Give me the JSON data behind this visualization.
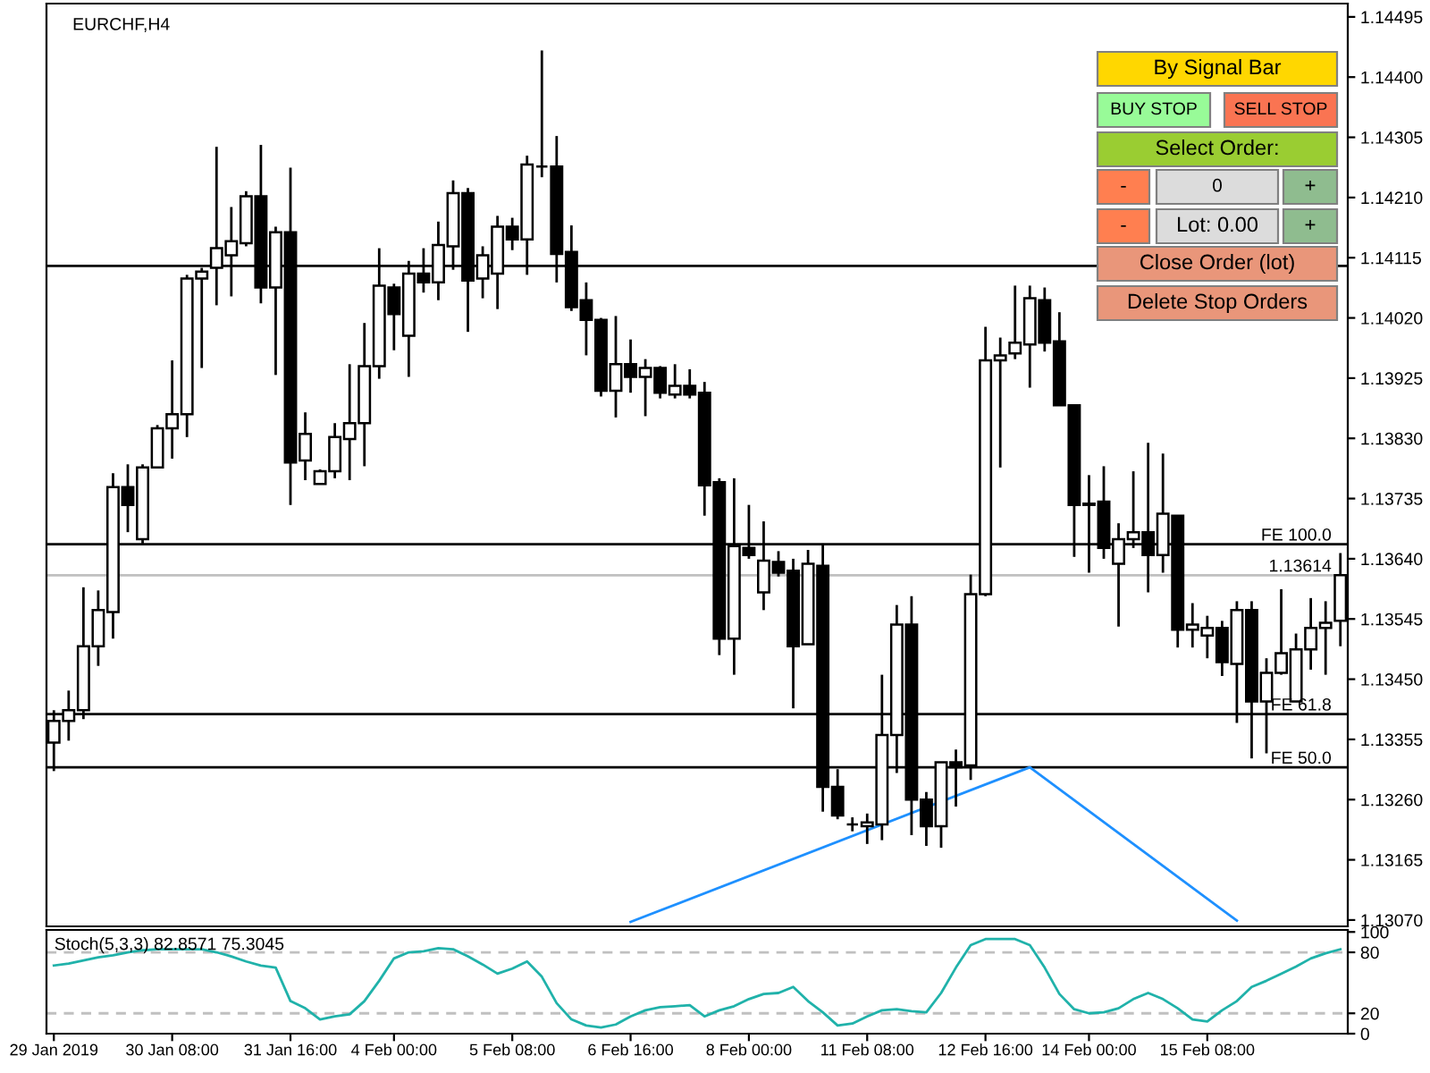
{
  "chart_data": [
    {
      "type": "candlestick",
      "title": "EURCHF,H4",
      "categories": [
        null,
        null,
        null,
        null,
        null,
        null,
        null,
        null,
        null,
        null,
        null,
        null,
        null,
        null,
        null,
        null,
        null,
        null,
        null,
        null,
        null,
        null,
        null,
        null,
        null,
        null,
        null,
        null,
        null,
        null,
        null,
        null,
        null,
        null,
        null,
        null,
        null,
        null,
        null,
        null,
        null,
        null,
        null,
        null,
        null,
        null,
        null,
        null,
        null,
        null,
        null,
        null,
        null,
        null,
        null,
        null,
        null,
        null,
        null,
        null,
        null,
        null,
        null,
        null,
        null,
        null,
        null,
        null,
        null,
        null,
        null,
        null,
        null,
        null,
        null,
        null,
        null,
        null,
        null,
        null,
        null,
        null,
        null,
        null,
        null,
        null,
        null,
        null
      ],
      "ohlc": [
        [
          1.1335,
          1.13401,
          1.13305,
          1.13384
        ],
        [
          1.13384,
          1.13432,
          1.13353,
          1.13401
        ],
        [
          1.13401,
          1.13595,
          1.13387,
          1.13502
        ],
        [
          1.13502,
          1.1359,
          1.13471,
          1.13559
        ],
        [
          1.13556,
          1.13775,
          1.13514,
          1.13753
        ],
        [
          1.13753,
          1.13789,
          1.13682,
          1.13725
        ],
        [
          1.13671,
          1.13789,
          1.13663,
          1.13784
        ],
        [
          1.13784,
          1.13851,
          1.13784,
          1.13846
        ],
        [
          1.13846,
          1.13953,
          1.13798,
          1.13868
        ],
        [
          1.13868,
          1.14088,
          1.13832,
          1.14082
        ],
        [
          1.14082,
          1.14099,
          1.13941,
          1.14093
        ],
        [
          1.14099,
          1.1429,
          1.1404,
          1.1413
        ],
        [
          1.14119,
          1.14195,
          1.14054,
          1.14141
        ],
        [
          1.14138,
          1.1422,
          1.14133,
          1.14212
        ],
        [
          1.14212,
          1.14293,
          1.14043,
          1.14068
        ],
        [
          1.14068,
          1.14164,
          1.1393,
          1.14155
        ],
        [
          1.14155,
          1.14257,
          1.13725,
          1.13792
        ],
        [
          1.13795,
          1.13871,
          1.13764,
          1.13837
        ],
        [
          1.13758,
          1.13781,
          1.13758,
          1.13778
        ],
        [
          1.13778,
          1.13854,
          1.13767,
          1.13832
        ],
        [
          1.13829,
          1.13947,
          1.13764,
          1.13854
        ],
        [
          1.13854,
          1.14012,
          1.13786,
          1.13944
        ],
        [
          1.13944,
          1.1413,
          1.13924,
          1.14071
        ],
        [
          1.14068,
          1.14074,
          1.13969,
          1.14026
        ],
        [
          1.13992,
          1.1411,
          1.13927,
          1.1409
        ],
        [
          1.1409,
          1.1413,
          1.1406,
          1.14076
        ],
        [
          1.14076,
          1.14172,
          1.14048,
          1.14135
        ],
        [
          1.14133,
          1.14237,
          1.14096,
          1.14217
        ],
        [
          1.14217,
          1.14225,
          1.13998,
          1.14079
        ],
        [
          1.14082,
          1.14133,
          1.14051,
          1.14119
        ],
        [
          1.1409,
          1.14181,
          1.14034,
          1.14164
        ],
        [
          1.14164,
          1.14178,
          1.14127,
          1.14144
        ],
        [
          1.14144,
          1.14276,
          1.14088,
          1.14262
        ],
        [
          1.14259,
          1.14442,
          1.14242,
          1.14259
        ],
        [
          1.14259,
          1.14307,
          1.14076,
          1.14121
        ],
        [
          1.14124,
          1.14166,
          1.14031,
          1.14037
        ],
        [
          1.14048,
          1.14076,
          1.13961,
          1.14017
        ],
        [
          1.14017,
          1.1402,
          1.13896,
          1.13905
        ],
        [
          1.13905,
          1.14023,
          1.13863,
          1.13947
        ],
        [
          1.13947,
          1.13986,
          1.13902,
          1.13927
        ],
        [
          1.13927,
          1.13955,
          1.13865,
          1.13941
        ],
        [
          1.13941,
          1.13944,
          1.13893,
          1.13902
        ],
        [
          1.13899,
          1.13947,
          1.13893,
          1.13913
        ],
        [
          1.13913,
          1.13939,
          1.13893,
          1.13899
        ],
        [
          1.13902,
          1.13919,
          1.13708,
          1.13756
        ],
        [
          1.13761,
          1.13767,
          1.13488,
          1.13514
        ],
        [
          1.13514,
          1.13767,
          1.13457,
          1.1366
        ],
        [
          1.13657,
          1.13725,
          1.1364,
          1.13646
        ],
        [
          1.13587,
          1.13699,
          1.13559,
          1.13637
        ],
        [
          1.13635,
          1.13652,
          1.13612,
          1.13618
        ],
        [
          1.13621,
          1.1364,
          1.13404,
          1.13502
        ],
        [
          1.13505,
          1.13654,
          1.13505,
          1.13632
        ],
        [
          1.13629,
          1.13663,
          1.13241,
          1.1328
        ],
        [
          1.1328,
          1.13308,
          1.13229,
          1.13235
        ],
        [
          1.13221,
          1.13232,
          1.1321,
          1.13221
        ],
        [
          1.13218,
          1.13238,
          1.1319,
          1.13224
        ],
        [
          1.13221,
          1.13457,
          1.13196,
          1.13362
        ],
        [
          1.13362,
          1.13567,
          1.13302,
          1.13536
        ],
        [
          1.13536,
          1.13581,
          1.13204,
          1.1326
        ],
        [
          1.1326,
          1.13272,
          1.13187,
          1.13218
        ],
        [
          1.13218,
          1.13319,
          1.13184,
          1.13319
        ],
        [
          1.13319,
          1.13339,
          1.13249,
          1.13311
        ],
        [
          1.13314,
          1.13615,
          1.13291,
          1.13584
        ],
        [
          1.13584,
          1.14006,
          1.13581,
          1.13953
        ],
        [
          1.13953,
          1.13989,
          1.13784,
          1.13961
        ],
        [
          1.13964,
          1.14071,
          1.13955,
          1.13981
        ],
        [
          1.13978,
          1.14071,
          1.1391,
          1.14051
        ],
        [
          1.14048,
          1.14068,
          1.13967,
          1.13981
        ],
        [
          1.13983,
          1.14029,
          1.13882,
          1.13882
        ],
        [
          1.13882,
          1.13882,
          1.13643,
          1.13725
        ],
        [
          1.13727,
          1.13772,
          1.13618,
          1.13725
        ],
        [
          1.1373,
          1.13786,
          1.1364,
          1.13657
        ],
        [
          1.13632,
          1.13696,
          1.13533,
          1.13671
        ],
        [
          1.13671,
          1.13778,
          1.13657,
          1.13682
        ],
        [
          1.13682,
          1.13823,
          1.13587,
          1.13646
        ],
        [
          1.13646,
          1.13806,
          1.13618,
          1.13711
        ],
        [
          1.13708,
          1.13708,
          1.135,
          1.13528
        ],
        [
          1.13528,
          1.1357,
          1.135,
          1.13536
        ],
        [
          1.13519,
          1.1355,
          1.13483,
          1.13531
        ],
        [
          1.13531,
          1.13542,
          1.13455,
          1.13477
        ],
        [
          1.13474,
          1.13573,
          1.13381,
          1.13559
        ],
        [
          1.13559,
          1.13573,
          1.13325,
          1.13415
        ],
        [
          1.13415,
          1.13483,
          1.13333,
          1.1346
        ],
        [
          1.1346,
          1.13592,
          1.13457,
          1.13491
        ],
        [
          1.13415,
          1.13522,
          1.13415,
          1.13497
        ],
        [
          1.13497,
          1.13578,
          1.13465,
          1.13531
        ],
        [
          1.13531,
          1.13573,
          1.13457,
          1.13539
        ],
        [
          1.13542,
          1.13649,
          1.13502,
          1.13614
        ]
      ],
      "series": [
        {
          "type": "line",
          "color": "#1e90ff",
          "values": [
            null,
            null,
            null,
            null,
            null,
            null,
            null,
            null,
            null,
            null,
            null,
            null,
            null,
            null,
            null,
            null,
            null,
            null,
            null,
            null,
            null,
            null,
            null,
            null,
            null,
            null,
            null,
            null,
            null,
            null,
            null,
            null,
            null,
            null,
            null,
            null,
            null,
            null,
            null,
            1.13067,
            null,
            null,
            null,
            null,
            null,
            null,
            null,
            null,
            null,
            null,
            null,
            null,
            null,
            null,
            null,
            null,
            null,
            null,
            null,
            null,
            null,
            null,
            null,
            null,
            null,
            null,
            1.13311,
            null,
            null,
            null,
            null,
            null,
            null,
            null,
            null,
            null,
            null,
            null,
            null,
            null,
            1.13069,
            null,
            null,
            null,
            null,
            null,
            null,
            null
          ]
        }
      ],
      "ylim": [
        1.1306,
        1.14516
      ],
      "yticks": [
        1.14495,
        {
          "value": 1.144,
          "label": "1.14400"
        },
        1.14305,
        {
          "value": 1.1421,
          "label": "1.14210"
        },
        1.14115,
        {
          "value": 1.1402,
          "label": "1.14020"
        },
        1.13925,
        {
          "value": 1.1383,
          "label": "1.13830"
        },
        1.13735,
        {
          "value": 1.1364,
          "label": "1.13640"
        },
        1.13545,
        {
          "value": 1.1345,
          "label": "1.13450"
        },
        1.13355,
        {
          "value": 1.1326,
          "label": "1.13260"
        },
        1.13165,
        {
          "value": 1.1307,
          "label": "1.13070"
        }
      ],
      "tick_labels": "y",
      "ref_lines": [
        {
          "axis": "y",
          "value": 1.14102,
          "color": "#000000"
        },
        {
          "axis": "y",
          "value": 1.13663,
          "label": "FE 100.0",
          "color": "#000000"
        },
        {
          "axis": "y",
          "value": 1.13614,
          "label": "1.13614",
          "color": "#c0c0c0"
        },
        {
          "axis": "y",
          "value": 1.13395,
          "label": "FE 61.8",
          "color": "#000000"
        },
        {
          "axis": "y",
          "value": 1.13311,
          "label": "FE 50.0",
          "color": "#000000"
        }
      ],
      "annotations": [
        "By Signal Bar",
        "BUY STOP",
        "SELL STOP",
        "Select Order:",
        "-",
        "0",
        "+",
        "-",
        "Lot: 0.00",
        "+",
        "Close Order (lot)",
        "Delete Stop Orders"
      ]
    },
    {
      "type": "line",
      "title": "Stoch(5,3,3) 82.8571 75.3045",
      "categories": [
        "29 Jan 2019",
        null,
        null,
        null,
        null,
        null,
        null,
        null,
        "30 Jan 08:00",
        null,
        null,
        null,
        null,
        null,
        null,
        null,
        "31 Jan 16:00",
        null,
        null,
        null,
        null,
        null,
        null,
        "4 Feb 00:00",
        null,
        null,
        null,
        null,
        null,
        null,
        null,
        "5 Feb 08:00",
        null,
        null,
        null,
        null,
        null,
        null,
        null,
        "6 Feb 16:00",
        null,
        null,
        null,
        null,
        null,
        null,
        null,
        "8 Feb 00:00",
        null,
        null,
        null,
        null,
        null,
        null,
        null,
        "11 Feb 08:00",
        null,
        null,
        null,
        null,
        null,
        null,
        null,
        "12 Feb 16:00",
        null,
        null,
        null,
        null,
        null,
        null,
        "14 Feb 00:00",
        null,
        null,
        null,
        null,
        null,
        null,
        null,
        "15 Feb 08:00",
        null,
        null,
        null,
        null,
        null,
        null,
        null,
        null,
        null
      ],
      "series": [
        {
          "color": "#20b2aa",
          "values": [
            67,
            69,
            72,
            75,
            77,
            80,
            82,
            83,
            83,
            83,
            83,
            80,
            76,
            71,
            67,
            65,
            32,
            25,
            14,
            17,
            19,
            32,
            52,
            74,
            80,
            81,
            84,
            83,
            76,
            68,
            59,
            64,
            71,
            56,
            30,
            14,
            8,
            6,
            9,
            17,
            23,
            26,
            27,
            28,
            17,
            23,
            27,
            34,
            39,
            40,
            46,
            32,
            21,
            8,
            10,
            17,
            23,
            24,
            22,
            21,
            40,
            65,
            87,
            93,
            93,
            93,
            87,
            65,
            39,
            24,
            20,
            21,
            25,
            34,
            40,
            34,
            25,
            14,
            12,
            23,
            32,
            46,
            52,
            59,
            66,
            74,
            79,
            83
          ]
        }
      ],
      "ylim": [
        0,
        102
      ],
      "yticks": [
        0,
        20,
        80,
        100
      ],
      "ref_lines": [
        {
          "axis": "y",
          "value": 20,
          "color": "#c0c0c0",
          "line_style": "dashed"
        },
        {
          "axis": "y",
          "value": 80,
          "color": "#c0c0c0",
          "line_style": "dashed"
        }
      ]
    }
  ]
}
